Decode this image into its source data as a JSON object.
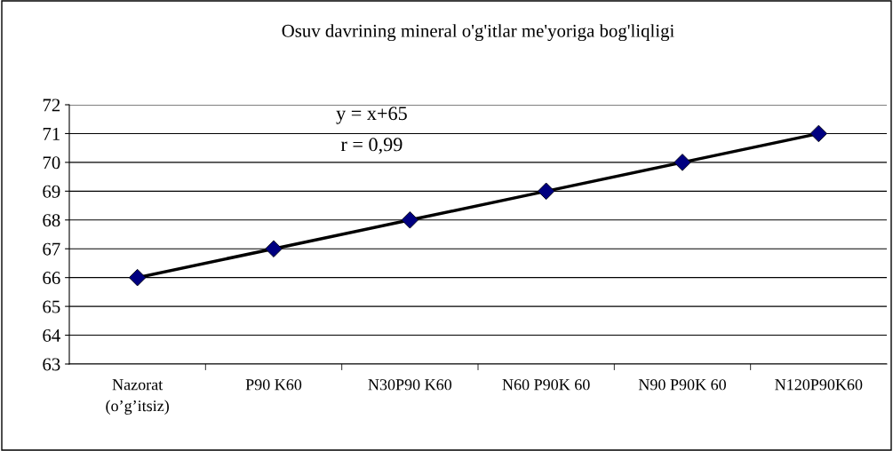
{
  "chart_data": {
    "type": "line",
    "title": "Osuv davrining mineral o'g'itlar me'yoriga bog'liqligi",
    "categories": [
      "Nazorat\n(o’g’itsiz)",
      "P90 K60",
      "N30P90 K60",
      "N60 P90K 60",
      "N90 P90K 60",
      "N120P90K60"
    ],
    "series": [
      {
        "color": "#000000",
        "marker": "none",
        "values": [
          66,
          67,
          68,
          69,
          70,
          71
        ]
      },
      {
        "type": "scatter",
        "color": "#000080",
        "marker": "diamond",
        "values": [
          66,
          67,
          68,
          69,
          70,
          71
        ]
      }
    ],
    "ylim": [
      63,
      72
    ],
    "yticks": [
      63,
      64,
      65,
      66,
      67,
      68,
      69,
      70,
      71,
      72
    ],
    "grid": "y",
    "legend": false,
    "annotations": [
      "y = x+65",
      "r = 0,99"
    ]
  }
}
